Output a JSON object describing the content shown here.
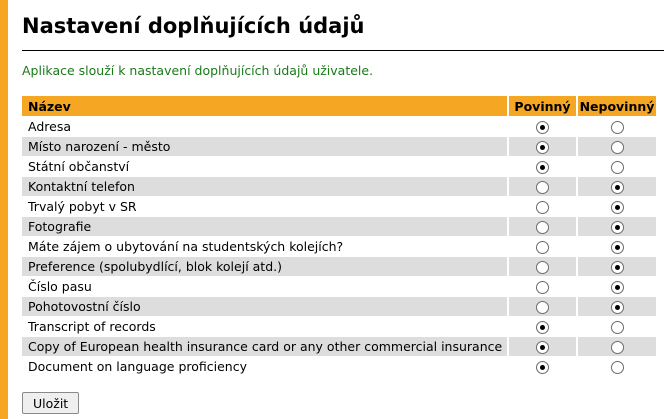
{
  "page": {
    "title": "Nastavení doplňujících údajů",
    "intro": "Aplikace slouží k nastavení doplňujících údajů uživatele."
  },
  "table": {
    "headers": {
      "name": "Název",
      "required": "Povinný",
      "optional": "Nepovinný"
    },
    "rows": [
      {
        "label": "Adresa",
        "required": true
      },
      {
        "label": "Místo narození - město",
        "required": true
      },
      {
        "label": "Státní občanství",
        "required": true
      },
      {
        "label": "Kontaktní telefon",
        "required": false
      },
      {
        "label": "Trvalý pobyt v SR",
        "required": false
      },
      {
        "label": "Fotografie",
        "required": false
      },
      {
        "label": "Máte zájem o ubytování na studentských kolejích?",
        "required": false
      },
      {
        "label": "Preference (spolubydlící, blok kolejí atd.)",
        "required": false
      },
      {
        "label": "Číslo pasu",
        "required": false
      },
      {
        "label": "Pohotovostní číslo",
        "required": false
      },
      {
        "label": "Transcript of records",
        "required": true
      },
      {
        "label": "Copy of European health insurance card or any other commercial insurance",
        "required": true
      },
      {
        "label": "Document on language proficiency",
        "required": true
      }
    ]
  },
  "actions": {
    "save_label": "Uložit"
  },
  "colors": {
    "accent": "#f5a623",
    "intro_text": "#1a7a1a",
    "row_alt": "#dddddd"
  }
}
